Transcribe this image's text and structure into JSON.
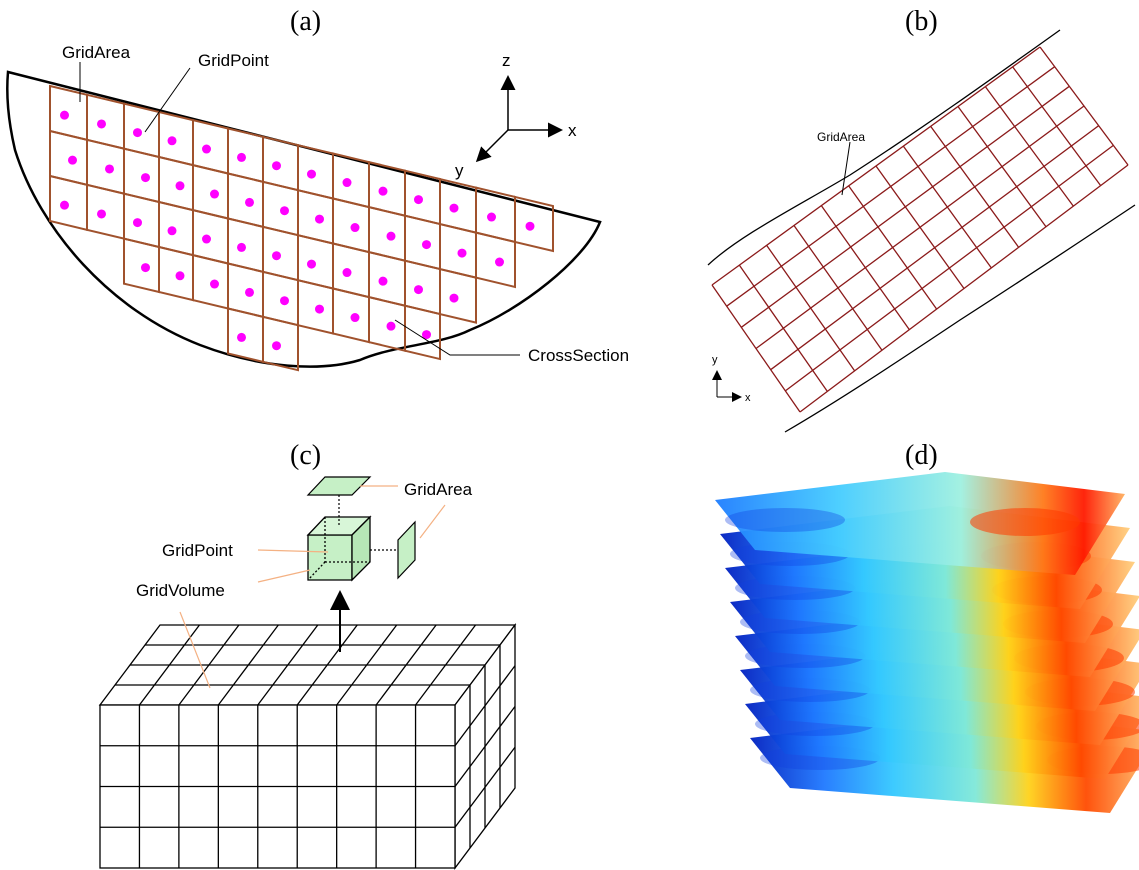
{
  "panels": {
    "a": {
      "label": "(a)",
      "grid_area": "GridArea",
      "grid_point": "GridPoint",
      "cross_section": "CrossSection",
      "axes": {
        "z": "z",
        "x": "x",
        "y": "y"
      }
    },
    "b": {
      "label": "(b)",
      "grid_area": "GridArea",
      "axes": {
        "y": "y",
        "x": "x"
      }
    },
    "c": {
      "label": "(c)",
      "grid_area": "GridArea",
      "grid_point": "GridPoint",
      "grid_volume": "GridVolume"
    },
    "d": {
      "label": "(d)"
    }
  },
  "colors": {
    "grid_line_a": "#a0522d",
    "grid_line_b": "#8b1a1a",
    "grid_point": "#ff00ff",
    "leader_c": "#f4b183",
    "cube_fill": "#c6f0c6"
  }
}
